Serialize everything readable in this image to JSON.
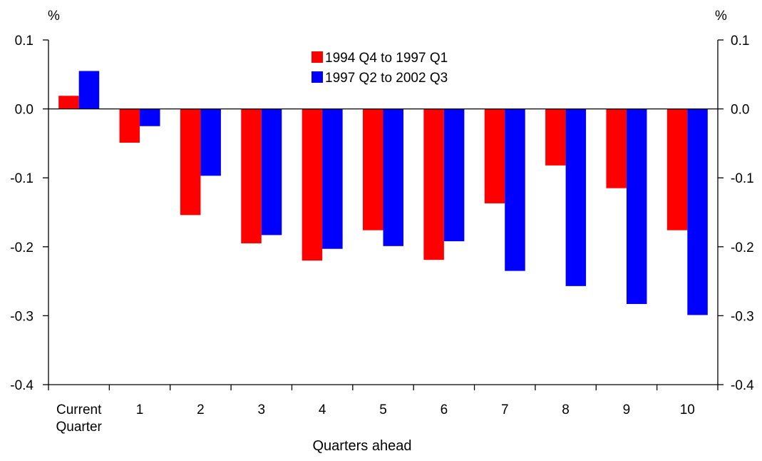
{
  "chart_data": {
    "type": "bar",
    "categories": [
      [
        "Current",
        "Quarter"
      ],
      [
        "1"
      ],
      [
        "2"
      ],
      [
        "3"
      ],
      [
        "4"
      ],
      [
        "5"
      ],
      [
        "6"
      ],
      [
        "7"
      ],
      [
        "8"
      ],
      [
        "9"
      ],
      [
        "10"
      ]
    ],
    "series": [
      {
        "name": "1994 Q4 to 1997 Q1",
        "color": "#ff0000",
        "values": [
          0.019,
          -0.049,
          -0.154,
          -0.195,
          -0.22,
          -0.176,
          -0.219,
          -0.137,
          -0.082,
          -0.115,
          -0.176
        ]
      },
      {
        "name": "1997 Q2 to 2002 Q3",
        "color": "#0000ff",
        "values": [
          0.055,
          -0.025,
          -0.097,
          -0.183,
          -0.203,
          -0.199,
          -0.192,
          -0.235,
          -0.257,
          -0.283,
          -0.299
        ]
      }
    ],
    "xlabel": "Quarters ahead",
    "ylabel_left": "%",
    "ylabel_right": "%",
    "ylim": [
      -0.4,
      0.1
    ],
    "yticks": [
      0.1,
      0.0,
      -0.1,
      -0.2,
      -0.3,
      -0.4
    ],
    "ytick_labels": [
      "0.1",
      "0.0",
      "-0.1",
      "-0.2",
      "-0.3",
      "-0.4"
    ],
    "grid": false,
    "legend_position": "top-center"
  }
}
